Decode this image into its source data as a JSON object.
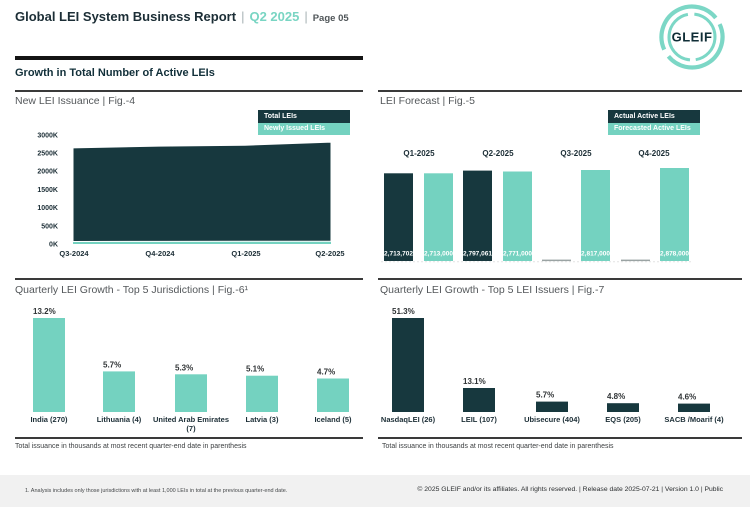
{
  "header": {
    "title": "Global LEI System Business Report",
    "quarter": "Q2 2025",
    "page_label": "Page 05",
    "separator": "|"
  },
  "logo": {
    "text": "GLEIF",
    "ring_color": "#7cd7c6",
    "text_color": "#0f2d36"
  },
  "section_heading": "Growth in Total Number of Active LEIs",
  "colors": {
    "teal": "#74d2c0",
    "dark_teal": "#17383e",
    "rule": "#3a3a3a",
    "axis_text": "#1c2e36",
    "footer_band": "#f1f1f1"
  },
  "chart_data": [
    {
      "id": "new-lei-issuance",
      "type": "area",
      "title": "New LEI Issuance | Fig.-4",
      "legend": [
        {
          "label": "Total LEIs",
          "color": "#17383e"
        },
        {
          "label": "Newly Issued LEIs",
          "color": "#74d2c0"
        }
      ],
      "legend_position": "top-right",
      "categories": [
        "Q3-2024",
        "Q4-2024",
        "Q1-2025",
        "Q2-2025"
      ],
      "series": [
        {
          "name": "Total LEIs",
          "values_thousands": [
            2640,
            2690,
            2715,
            2800
          ]
        },
        {
          "name": "Newly Issued LEIs",
          "values_thousands": [
            70,
            72,
            75,
            78
          ]
        }
      ],
      "y_ticks": [
        "3000K",
        "2500K",
        "2000K",
        "1500K",
        "1000K",
        "500K",
        "0K"
      ],
      "ylim_thousands": [
        0,
        3000
      ],
      "grid": false
    },
    {
      "id": "lei-forecast",
      "type": "bar",
      "title": "LEI Forecast | Fig.-5",
      "legend": [
        {
          "label": "Actual Active LEIs",
          "color": "#17383e"
        },
        {
          "label": "Forecasted Active LEIs",
          "color": "#74d2c0"
        }
      ],
      "legend_position": "top-right",
      "categories": [
        "Q1-2025",
        "Q2-2025",
        "Q3-2025",
        "Q4-2025"
      ],
      "series": [
        {
          "name": "Actual Active LEIs",
          "values": [
            2713702,
            2797061,
            null,
            null
          ],
          "value_labels": [
            "2,713,702",
            "2,797,061",
            "",
            ""
          ]
        },
        {
          "name": "Forecasted Active LEIs",
          "values": [
            2713000,
            2771000,
            2817000,
            2878000
          ],
          "value_labels": [
            "2,713,000",
            "2,771,000",
            "2,817,000",
            "2,878,000"
          ]
        }
      ],
      "grid": false
    },
    {
      "id": "quarterly-growth-jurisdictions",
      "type": "bar",
      "title": "Quarterly LEI Growth - Top 5 Jurisdictions | Fig.-6¹",
      "categories": [
        "India (270)",
        "Lithuania (4)",
        "United Arab Emirates (7)",
        "Latvia (3)",
        "Iceland (5)"
      ],
      "category_label_lines": [
        [
          "India (270)"
        ],
        [
          "Lithuania (4)"
        ],
        [
          "United Arab Emirates",
          "(7)"
        ],
        [
          "Latvia (3)"
        ],
        [
          "Iceland (5)"
        ]
      ],
      "values_percent": [
        13.2,
        5.7,
        5.3,
        5.1,
        4.7
      ],
      "value_labels": [
        "13.2%",
        "5.7%",
        "5.3%",
        "5.1%",
        "4.7%"
      ],
      "bar_color": "#74d2c0",
      "note": "Total issuance in thousands at most recent quarter-end date in parenthesis",
      "grid": false
    },
    {
      "id": "quarterly-growth-issuers",
      "type": "bar",
      "title": "Quarterly LEI Growth - Top 5 LEI Issuers | Fig.-7",
      "categories": [
        "NasdaqLEI (26)",
        "LEIL (107)",
        "Ubisecure (404)",
        "EQS (205)",
        "SACB /Moarif (4)"
      ],
      "category_label_lines": [
        [
          "NasdaqLEI (26)"
        ],
        [
          "LEIL (107)"
        ],
        [
          "Ubisecure (404)"
        ],
        [
          "EQS (205)"
        ],
        [
          "SACB /Moarif (4)"
        ]
      ],
      "values_percent": [
        51.3,
        13.1,
        5.7,
        4.8,
        4.6
      ],
      "value_labels": [
        "51.3%",
        "13.1%",
        "5.7%",
        "4.8%",
        "4.6%"
      ],
      "bar_color": "#17383e",
      "note": "Total issuance in thousands at most recent quarter-end date in parenthesis",
      "grid": false
    }
  ],
  "footnote": "1. Analysis includes only those jurisdictions with at least 1,000 LEIs in total at the previous quarter-end date.",
  "copyright": "© 2025 GLEIF and/or its affiliates. All rights reserved. | Release date 2025-07-21 | Version 1.0 | Public"
}
